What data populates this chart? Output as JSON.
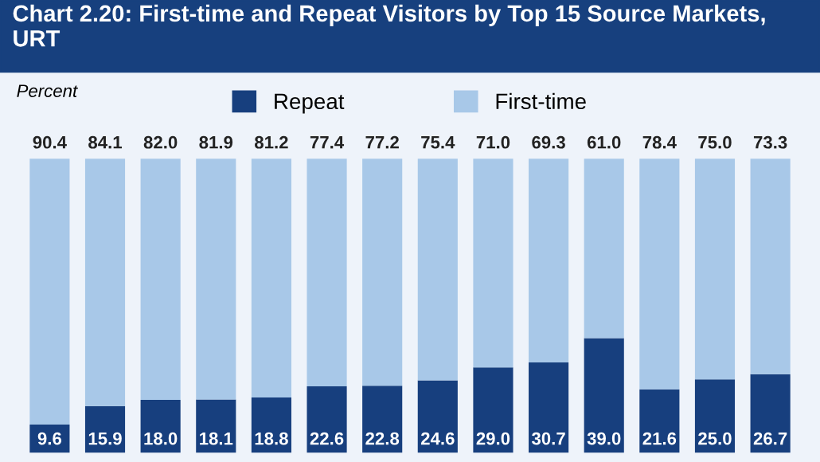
{
  "chart_data": {
    "type": "bar",
    "title": "Chart 2.20: First-time and Repeat Visitors by Top 15 Source Markets, URT",
    "ylabel": "Percent",
    "categories": [
      null,
      null,
      null,
      null,
      null,
      null,
      null,
      null,
      null,
      null,
      null,
      null,
      null,
      null
    ],
    "stacked": true,
    "legend": "top",
    "grid": false,
    "tick_labels": false,
    "series": [
      {
        "name": "Repeat",
        "color": "#173f7e",
        "values": [
          9.6,
          15.9,
          18.0,
          18.1,
          18.8,
          22.6,
          22.8,
          24.6,
          29.0,
          30.7,
          39.0,
          21.6,
          25.0,
          26.7
        ],
        "value_labels": [
          "9.6",
          "15.9",
          "18.0",
          "18.1",
          "18.8",
          "22.6",
          "22.8",
          "24.6",
          "29.0",
          "30.7",
          "39.0",
          "21.6",
          "25.0",
          "26.7"
        ]
      },
      {
        "name": "First-time",
        "color": "#a8c8e8",
        "values": [
          90.4,
          84.1,
          82.0,
          81.9,
          81.2,
          77.4,
          77.2,
          75.4,
          71.0,
          69.3,
          61.0,
          78.4,
          75.0,
          73.3
        ],
        "value_labels": [
          "90.4",
          "84.1",
          "82.0",
          "81.9",
          "81.2",
          "77.4",
          "77.2",
          "75.4",
          "71.0",
          "69.3",
          "61.0",
          "78.4",
          "75.0",
          "73.3"
        ]
      }
    ]
  }
}
